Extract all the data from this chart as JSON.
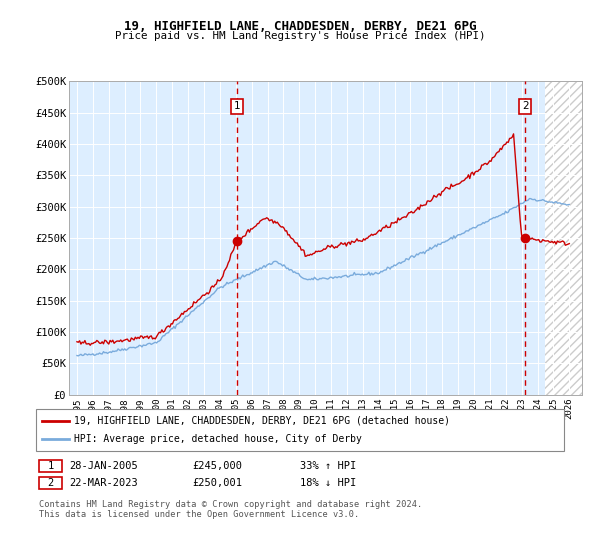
{
  "title1": "19, HIGHFIELD LANE, CHADDESDEN, DERBY, DE21 6PG",
  "title2": "Price paid vs. HM Land Registry's House Price Index (HPI)",
  "ylim": [
    0,
    500000
  ],
  "yticks": [
    0,
    50000,
    100000,
    150000,
    200000,
    250000,
    300000,
    350000,
    400000,
    450000,
    500000
  ],
  "ytick_labels": [
    "£0",
    "£50K",
    "£100K",
    "£150K",
    "£200K",
    "£250K",
    "£300K",
    "£350K",
    "£400K",
    "£450K",
    "£500K"
  ],
  "hpi_color": "#7aabdc",
  "price_color": "#cc0000",
  "bg_color": "#ddeeff",
  "grid_color": "#ffffff",
  "sale1_date": 2005.07,
  "sale1_price": 245000,
  "sale1_label": "1",
  "sale2_date": 2023.22,
  "sale2_price": 250001,
  "sale2_label": "2",
  "legend_line1": "19, HIGHFIELD LANE, CHADDESDEN, DERBY, DE21 6PG (detached house)",
  "legend_line2": "HPI: Average price, detached house, City of Derby",
  "table_row1": [
    "1",
    "28-JAN-2005",
    "£245,000",
    "33% ↑ HPI"
  ],
  "table_row2": [
    "2",
    "22-MAR-2023",
    "£250,001",
    "18% ↓ HPI"
  ],
  "footer": "Contains HM Land Registry data © Crown copyright and database right 2024.\nThis data is licensed under the Open Government Licence v3.0.",
  "xlim_start": 1994.5,
  "xlim_end": 2026.8,
  "hatch_start": 2024.5,
  "xticks": [
    1995,
    1996,
    1997,
    1998,
    1999,
    2000,
    2001,
    2002,
    2003,
    2004,
    2005,
    2006,
    2007,
    2008,
    2009,
    2010,
    2011,
    2012,
    2013,
    2014,
    2015,
    2016,
    2017,
    2018,
    2019,
    2020,
    2021,
    2022,
    2023,
    2024,
    2025,
    2026
  ]
}
